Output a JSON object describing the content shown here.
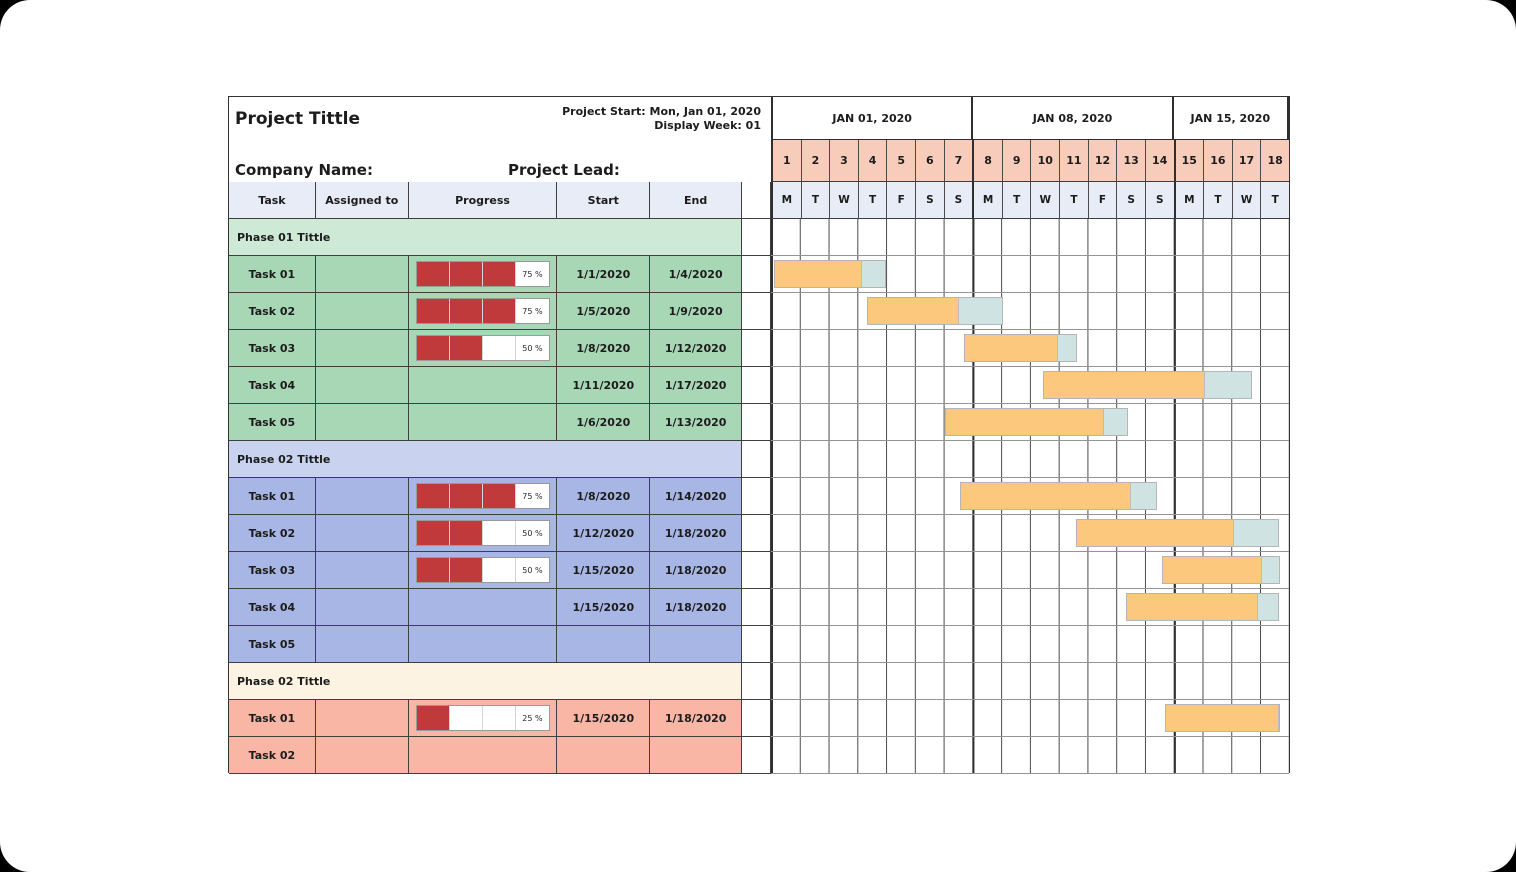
{
  "header": {
    "project_title": "Project Tittle",
    "project_start": "Project Start: Mon, Jan 01, 2020",
    "display_week": "Display Week: 01",
    "company_label": "Company Name:",
    "lead_label": "Project Lead:"
  },
  "table_columns": {
    "task": "Task",
    "assigned": "Assigned to",
    "progress": "Progress",
    "start": "Start",
    "end": "End"
  },
  "colors": {
    "phase1_header": "#cfe9d7",
    "phase1_row": "#a8d7b6",
    "phase2_header": "#c9d3ef",
    "phase2_row": "#a8b6e5",
    "phase3_header": "#fdf3e3",
    "phase3_row": "#f9b6a4",
    "daynum_row": "#f8ccba",
    "header_row": "#e8ecf7",
    "bar_orange": "#fcc87d",
    "bar_cap": "#cfe3e3",
    "progress_red": "#c03a3c"
  },
  "chart_data": {
    "type": "gantt",
    "title": "Project Tittle",
    "timeline": {
      "total_days": 18,
      "weeks": [
        {
          "label": "JAN 01, 2020",
          "span_days": 7
        },
        {
          "label": "JAN 08, 2020",
          "span_days": 7
        },
        {
          "label": "JAN 15, 2020",
          "span_days": 4
        }
      ],
      "day_numbers": [
        "1",
        "2",
        "3",
        "4",
        "5",
        "6",
        "7",
        "8",
        "9",
        "10",
        "11",
        "12",
        "13",
        "14",
        "15",
        "16",
        "17",
        "18"
      ],
      "day_letters": [
        "M",
        "T",
        "W",
        "T",
        "F",
        "S",
        "S",
        "M",
        "T",
        "W",
        "T",
        "F",
        "S",
        "S",
        "M",
        "T",
        "W",
        "T"
      ]
    },
    "phases": [
      {
        "title": "Phase 01 Tittle",
        "tasks": [
          {
            "label": "Task 01",
            "assigned": "",
            "progress_pct": 75,
            "progress_label": "75 %",
            "start": "1/1/2020",
            "end": "1/4/2020",
            "gantt": {
              "start": 0.1,
              "end": 4.0,
              "progress_end": 3.2
            }
          },
          {
            "label": "Task 02",
            "assigned": "",
            "progress_pct": 75,
            "progress_label": "75 %",
            "start": "1/5/2020",
            "end": "1/9/2020",
            "gantt": {
              "start": 3.35,
              "end": 8.05,
              "progress_end": 6.55
            }
          },
          {
            "label": "Task 03",
            "assigned": "",
            "progress_pct": 50,
            "progress_label": "50 %",
            "start": "1/8/2020",
            "end": "1/12/2020",
            "gantt": {
              "start": 6.7,
              "end": 10.65,
              "progress_end": 10.0
            }
          },
          {
            "label": "Task 04",
            "assigned": "",
            "progress_pct": null,
            "progress_label": "",
            "start": "1/11/2020",
            "end": "1/17/2020",
            "gantt": {
              "start": 9.45,
              "end": 16.7,
              "progress_end": 15.1
            }
          },
          {
            "label": "Task 05",
            "assigned": "",
            "progress_pct": null,
            "progress_label": "",
            "start": "1/6/2020",
            "end": "1/13/2020",
            "gantt": {
              "start": 6.05,
              "end": 12.4,
              "progress_end": 11.6
            }
          }
        ]
      },
      {
        "title": "Phase 02 Tittle",
        "tasks": [
          {
            "label": "Task 01",
            "assigned": "",
            "progress_pct": 75,
            "progress_label": "75 %",
            "start": "1/8/2020",
            "end": "1/14/2020",
            "gantt": {
              "start": 6.55,
              "end": 13.4,
              "progress_end": 12.55
            }
          },
          {
            "label": "Task 02",
            "assigned": "",
            "progress_pct": 50,
            "progress_label": "50 %",
            "start": "1/12/2020",
            "end": "1/18/2020",
            "gantt": {
              "start": 10.6,
              "end": 17.65,
              "progress_end": 16.1
            }
          },
          {
            "label": "Task 03",
            "assigned": "",
            "progress_pct": 50,
            "progress_label": "50 %",
            "start": "1/15/2020",
            "end": "1/18/2020",
            "gantt": {
              "start": 13.6,
              "end": 17.7,
              "progress_end": 17.1
            }
          },
          {
            "label": "Task 04",
            "assigned": "",
            "progress_pct": null,
            "progress_label": "",
            "start": "1/15/2020",
            "end": "1/18/2020",
            "gantt": {
              "start": 12.35,
              "end": 17.65,
              "progress_end": 16.95
            }
          },
          {
            "label": "Task 05",
            "assigned": "",
            "progress_pct": null,
            "progress_label": "",
            "start": "",
            "end": "",
            "gantt": null
          }
        ]
      },
      {
        "title": "Phase 02 Tittle",
        "tasks": [
          {
            "label": "Task 01",
            "assigned": "",
            "progress_pct": 25,
            "progress_label": "25 %",
            "start": "1/15/2020",
            "end": "1/18/2020",
            "gantt": {
              "start": 13.7,
              "end": 17.7,
              "progress_end": 17.7
            }
          },
          {
            "label": "Task 02",
            "assigned": "",
            "progress_pct": null,
            "progress_label": "",
            "start": "",
            "end": "",
            "gantt": null
          }
        ]
      }
    ]
  }
}
